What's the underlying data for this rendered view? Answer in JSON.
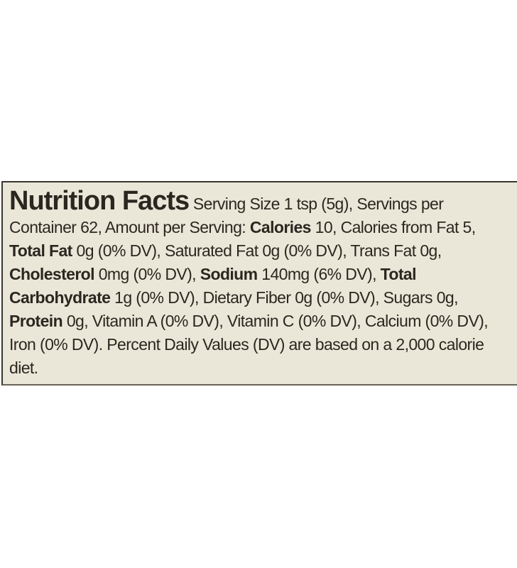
{
  "label": {
    "title": "Nutrition Facts",
    "runs": [
      {
        "text": " Serving Size 1 tsp (5g), Servings per Container 62, Amount per Serving:  ",
        "bold": false
      },
      {
        "text": "Calories",
        "bold": true
      },
      {
        "text": " 10, Calories from Fat 5, ",
        "bold": false
      },
      {
        "text": "Total Fat",
        "bold": true
      },
      {
        "text": " 0g (0% DV), Saturated Fat 0g (0% DV), Trans Fat 0g, ",
        "bold": false
      },
      {
        "text": "Cholesterol",
        "bold": true
      },
      {
        "text": " 0mg (0% DV), ",
        "bold": false
      },
      {
        "text": "Sodium",
        "bold": true
      },
      {
        "text": " 140mg (6% DV), ",
        "bold": false
      },
      {
        "text": "Total Carbohydrate",
        "bold": true
      },
      {
        "text": " 1g (0% DV), Dietary Fiber 0g (0% DV), Sugars 0g, ",
        "bold": false
      },
      {
        "text": "Protein",
        "bold": true
      },
      {
        "text": " 0g, Vitamin A (0% DV), Vitamin C (0% DV), Calcium (0% DV), Iron (0% DV). Percent Daily Values (DV) are based on a 2,000 calorie diet.",
        "bold": false
      }
    ]
  }
}
